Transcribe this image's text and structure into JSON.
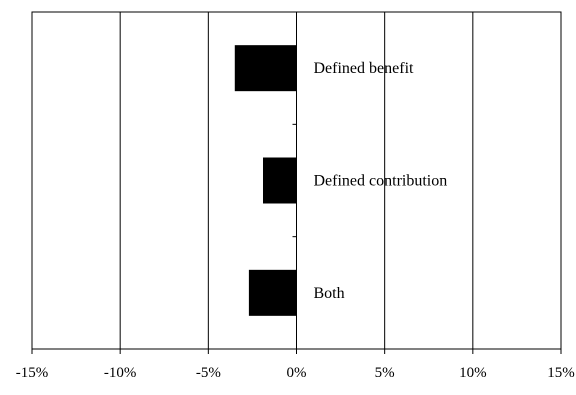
{
  "chart_data": {
    "type": "bar",
    "orientation": "horizontal",
    "categories": [
      "Defined benefit",
      "Defined contribution",
      "Both"
    ],
    "values": [
      -3.5,
      -1.9,
      -2.7
    ],
    "xlim": [
      -15,
      15
    ],
    "x_ticks": [
      -15,
      -10,
      -5,
      0,
      5,
      10,
      15
    ],
    "x_tick_labels": [
      "-15%",
      "-10%",
      "-5%",
      "0%",
      "5%",
      "10%",
      "15%"
    ],
    "grid": "vertical",
    "bar_color": "#000000",
    "title": "",
    "xlabel": "",
    "ylabel": ""
  }
}
